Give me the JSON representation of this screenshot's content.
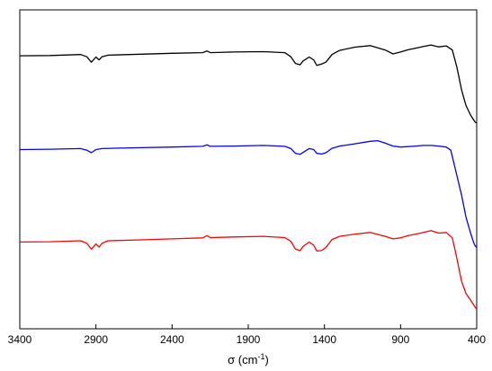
{
  "chart_data": {
    "type": "line",
    "title": "",
    "xlabel": "σ (cm",
    "xlabel_sup": "-1",
    "xlabel_close": ")",
    "ylabel": "",
    "xlim": [
      3400,
      400
    ],
    "x_reversed": true,
    "x_ticks": [
      3400,
      2900,
      2400,
      1900,
      1400,
      900,
      400
    ],
    "x_tick_labels": [
      "3400",
      "2900",
      "2400",
      "1900",
      "1400",
      "900",
      "400"
    ],
    "y_ticks_shown": false,
    "grid": false,
    "legend": "none",
    "series": [
      {
        "color": "#000000",
        "x": [
          3400,
          3200,
          3000,
          2960,
          2930,
          2900,
          2880,
          2860,
          2820,
          2600,
          2400,
          2200,
          2170,
          2150,
          2000,
          1800,
          1660,
          1620,
          1590,
          1560,
          1540,
          1500,
          1470,
          1450,
          1420,
          1390,
          1350,
          1300,
          1200,
          1100,
          1000,
          950,
          900,
          850,
          800,
          750,
          700,
          650,
          600,
          560,
          530,
          500,
          470,
          440,
          420,
          410,
          400
        ],
        "y": [
          0.856,
          0.857,
          0.86,
          0.853,
          0.836,
          0.852,
          0.843,
          0.853,
          0.858,
          0.861,
          0.864,
          0.866,
          0.871,
          0.866,
          0.868,
          0.869,
          0.866,
          0.853,
          0.832,
          0.828,
          0.84,
          0.852,
          0.843,
          0.826,
          0.83,
          0.836,
          0.86,
          0.873,
          0.883,
          0.888,
          0.874,
          0.862,
          0.868,
          0.875,
          0.88,
          0.885,
          0.89,
          0.884,
          0.887,
          0.874,
          0.82,
          0.75,
          0.7,
          0.67,
          0.655,
          0.648,
          0.645
        ]
      },
      {
        "color": "#0000ff",
        "x": [
          3400,
          3200,
          3000,
          2960,
          2930,
          2900,
          2860,
          2800,
          2600,
          2400,
          2200,
          2170,
          2150,
          2000,
          1800,
          1660,
          1620,
          1590,
          1560,
          1540,
          1500,
          1470,
          1450,
          1420,
          1390,
          1350,
          1300,
          1200,
          1100,
          1050,
          1000,
          950,
          900,
          800,
          750,
          700,
          650,
          600,
          570,
          540,
          500,
          470,
          440,
          420,
          410,
          400
        ],
        "y": [
          0.562,
          0.563,
          0.565,
          0.56,
          0.552,
          0.562,
          0.565,
          0.566,
          0.568,
          0.57,
          0.572,
          0.577,
          0.572,
          0.573,
          0.575,
          0.572,
          0.565,
          0.55,
          0.547,
          0.553,
          0.565,
          0.562,
          0.55,
          0.548,
          0.552,
          0.566,
          0.573,
          0.58,
          0.588,
          0.59,
          0.582,
          0.573,
          0.57,
          0.573,
          0.575,
          0.575,
          0.573,
          0.57,
          0.56,
          0.5,
          0.42,
          0.35,
          0.3,
          0.27,
          0.26,
          0.255
        ]
      },
      {
        "color": "#ff0000",
        "x": [
          3400,
          3200,
          3000,
          2960,
          2930,
          2900,
          2880,
          2860,
          2820,
          2600,
          2400,
          2200,
          2170,
          2150,
          2000,
          1800,
          1660,
          1620,
          1590,
          1560,
          1540,
          1500,
          1470,
          1450,
          1420,
          1390,
          1350,
          1300,
          1200,
          1100,
          1000,
          950,
          900,
          850,
          800,
          750,
          700,
          650,
          600,
          560,
          530,
          500,
          470,
          440,
          420,
          410,
          400
        ],
        "y": [
          0.272,
          0.273,
          0.276,
          0.268,
          0.25,
          0.266,
          0.256,
          0.268,
          0.276,
          0.279,
          0.282,
          0.285,
          0.292,
          0.286,
          0.288,
          0.29,
          0.286,
          0.274,
          0.25,
          0.245,
          0.258,
          0.272,
          0.262,
          0.244,
          0.245,
          0.255,
          0.28,
          0.29,
          0.297,
          0.302,
          0.29,
          0.282,
          0.285,
          0.292,
          0.297,
          0.302,
          0.308,
          0.3,
          0.302,
          0.285,
          0.22,
          0.15,
          0.11,
          0.09,
          0.075,
          0.068,
          0.06
        ]
      }
    ]
  }
}
